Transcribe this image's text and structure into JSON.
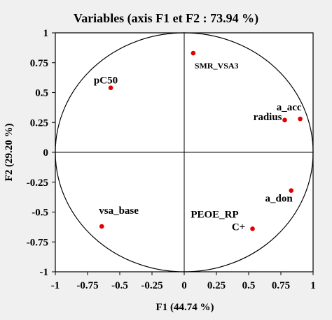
{
  "chart_data": {
    "type": "scatter",
    "title": "Variables (axis F1 et F2 : 73.94 %)",
    "xlabel": "F1 (44.74 %)",
    "ylabel": "F2 (29.20 %)",
    "xlim": [
      -1,
      1
    ],
    "ylim": [
      -1,
      1
    ],
    "xticks": [
      "-1",
      "-0.75",
      "-0.5",
      "-0.25",
      "0",
      "0.25",
      "0.5",
      "0.75",
      "1"
    ],
    "yticks": [
      "1",
      "0.75",
      "0.5",
      "0.25",
      "0",
      "-0.25",
      "-0.5",
      "-0.75",
      "-1"
    ],
    "correlation_circle": true,
    "grid": false,
    "point_color": "#e00000",
    "background_color": "#f0f0f0",
    "points": [
      {
        "label": "SMR_VSA3",
        "x": 0.07,
        "y": 0.83
      },
      {
        "label": "pC50",
        "x": -0.57,
        "y": 0.54
      },
      {
        "label": "radius",
        "x": 0.78,
        "y": 0.27
      },
      {
        "label": "a_acc",
        "x": 0.9,
        "y": 0.28
      },
      {
        "label": "a_don",
        "x": 0.83,
        "y": -0.32
      },
      {
        "label": "vsa_base",
        "x": -0.64,
        "y": -0.62
      },
      {
        "label": "PEOE_RP",
        "x": 0.53,
        "y": -0.64
      },
      {
        "label": "C+",
        "x": 0.53,
        "y": -0.64
      }
    ]
  }
}
